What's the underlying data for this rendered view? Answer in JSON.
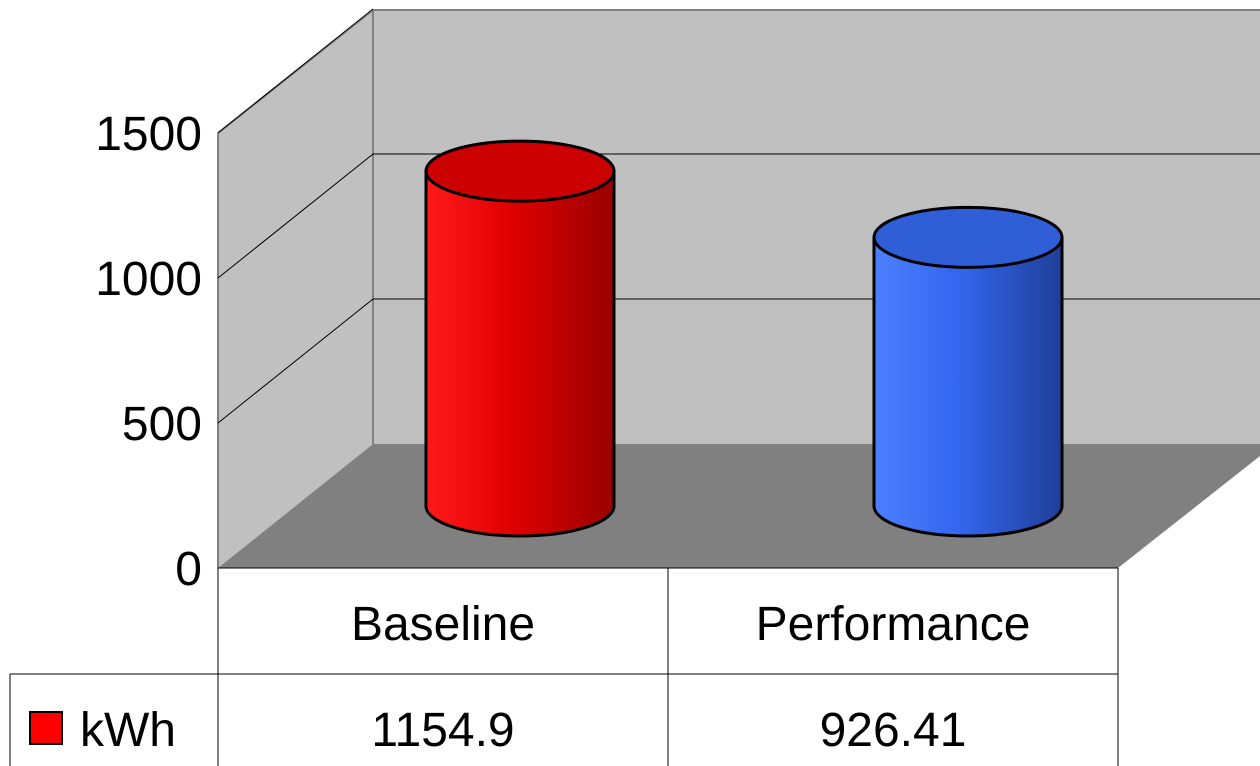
{
  "chart_data": {
    "type": "bar",
    "style": "3d-cylinder-with-data-table",
    "categories": [
      "Baseline",
      "Performance"
    ],
    "series": [
      {
        "name": "kWh",
        "values": [
          1154.9,
          926.41
        ],
        "display_values": [
          "1154.9",
          "926.41"
        ],
        "colors": [
          "#ff0000",
          "#3366ff"
        ]
      }
    ],
    "yticks": [
      0,
      500,
      1000,
      1500
    ],
    "ylim": [
      0,
      1500
    ],
    "grid": true,
    "legend": "data-table-left",
    "colors": {
      "back_wall": "#c0c0c0",
      "side_wall": "#c0c0c0",
      "floor": "#808080",
      "legend_key": "#ff0000"
    }
  }
}
